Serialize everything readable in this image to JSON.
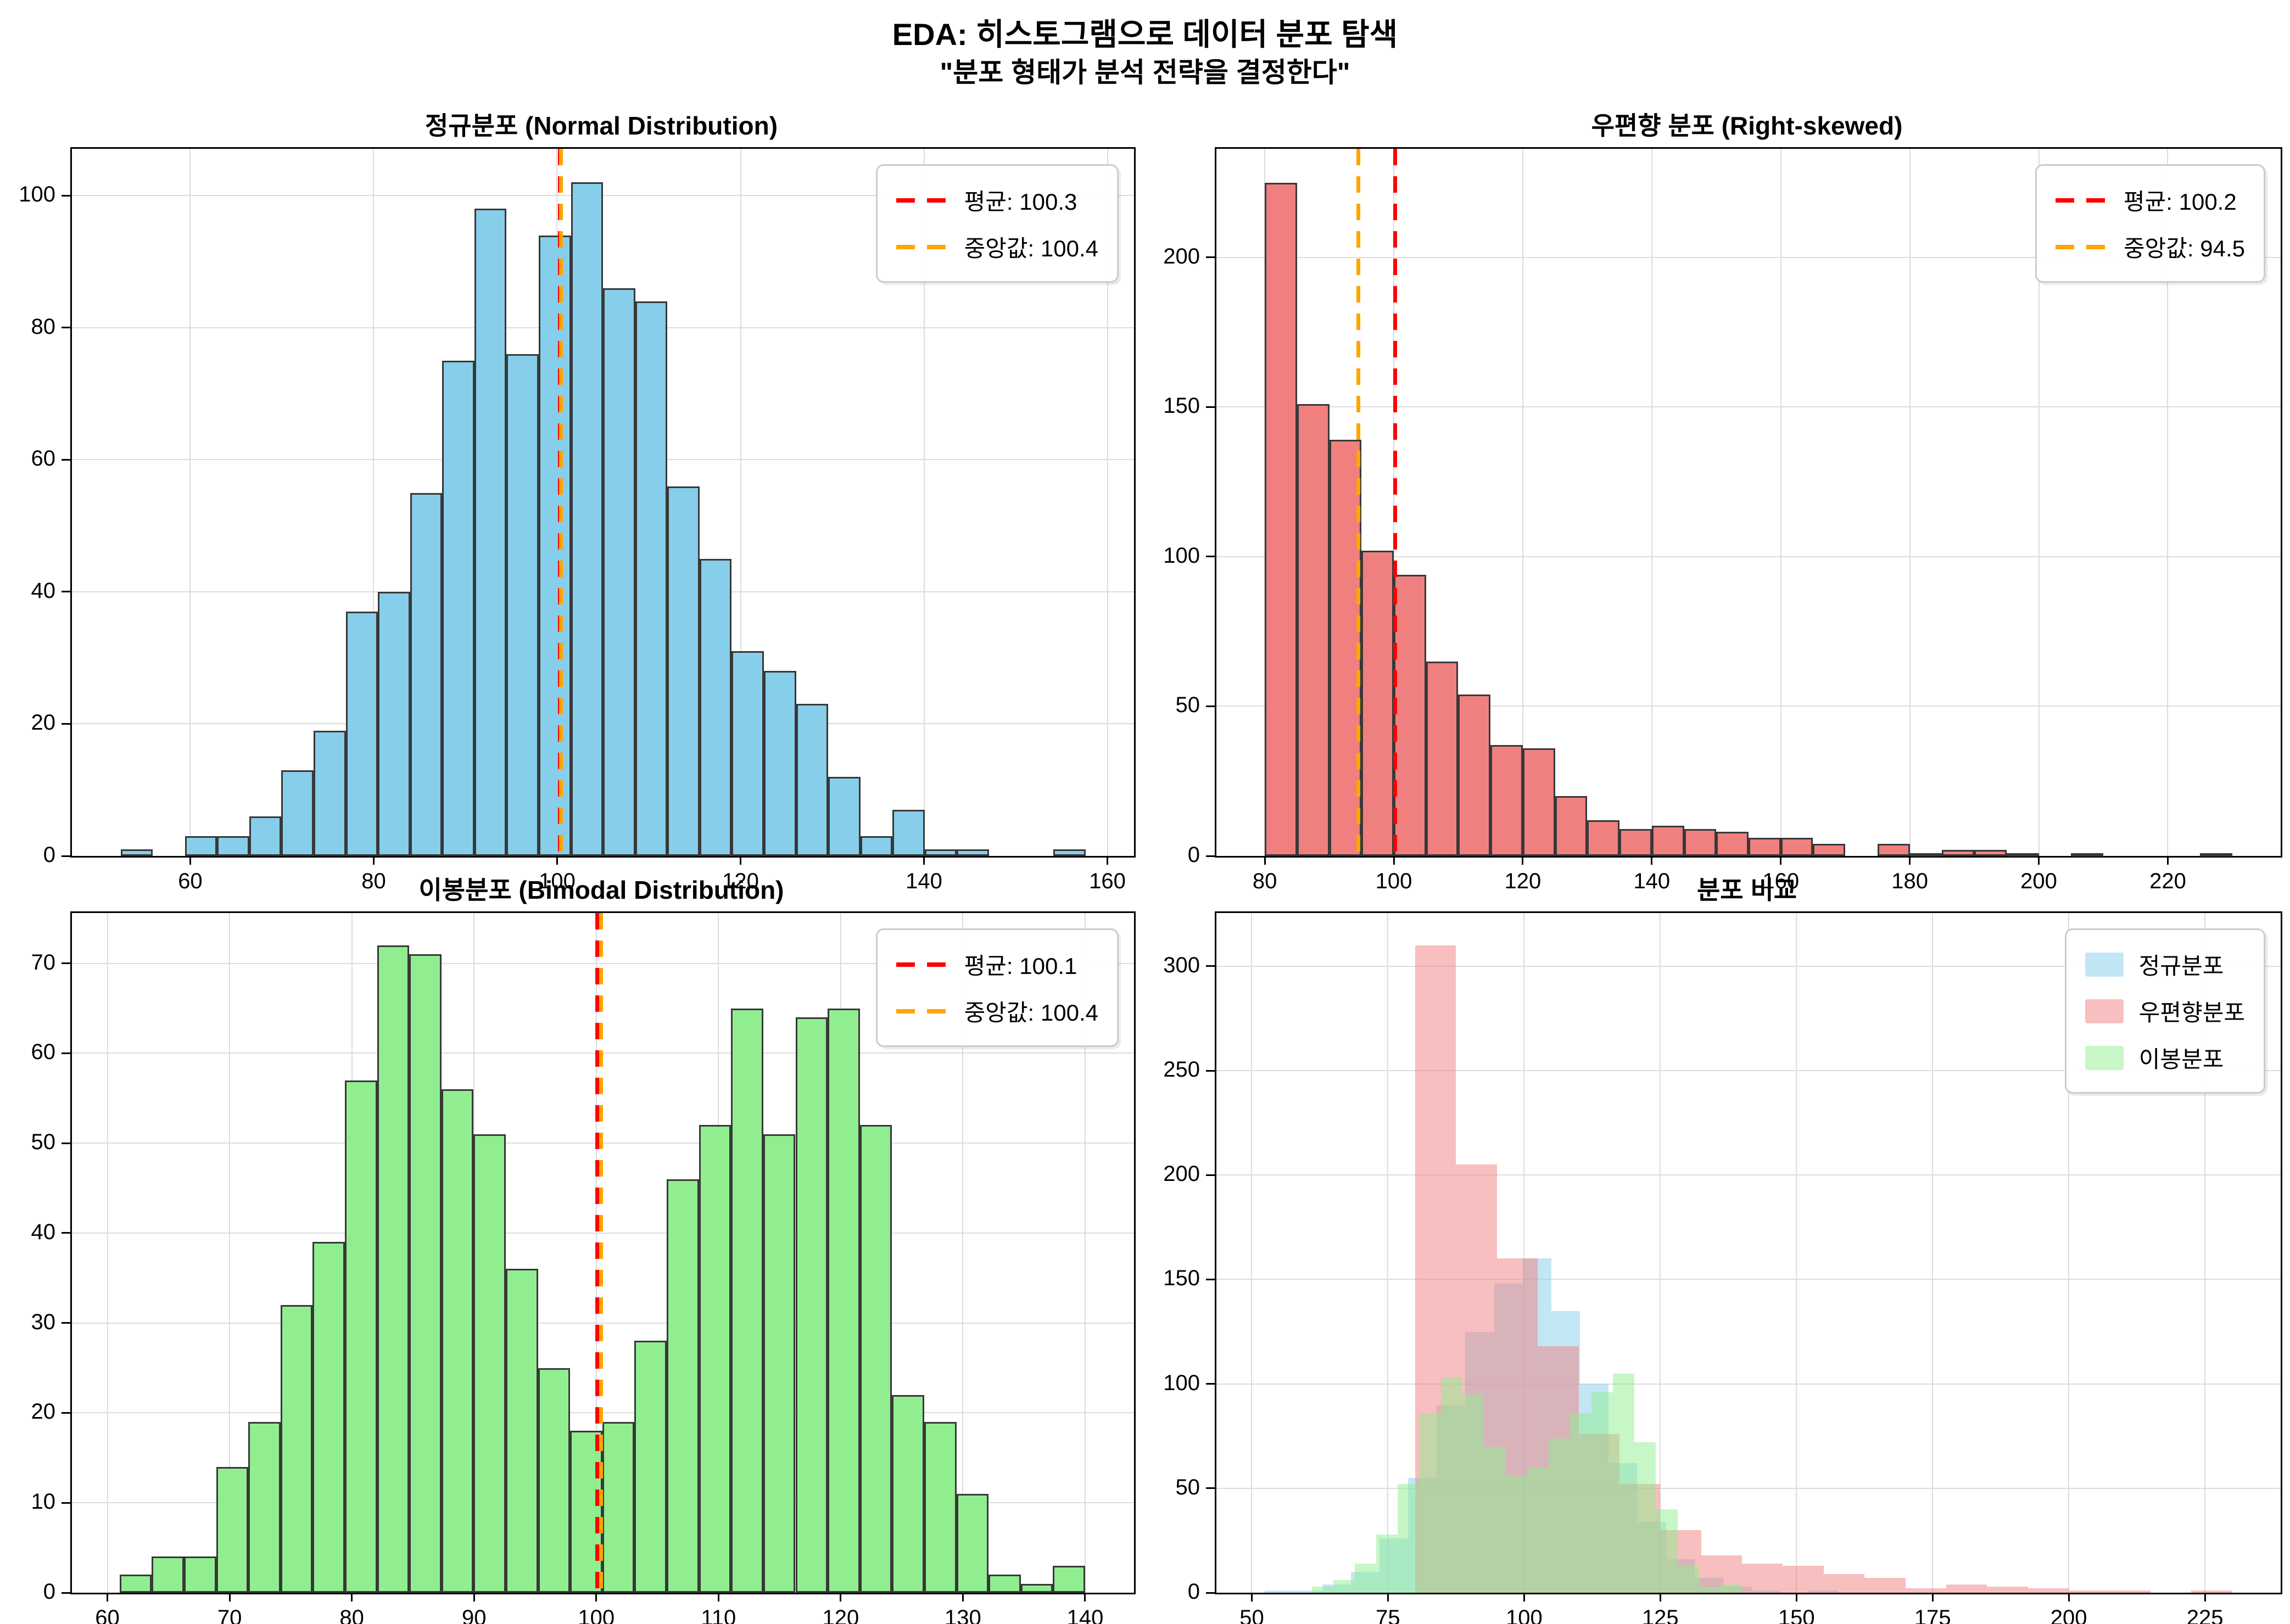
{
  "figure": {
    "suptitle_line1": "EDA: 히스토그램으로 데이터 분포 탐색",
    "suptitle_line2": "\"분포 형태가 분석 전략을 결정한다\"",
    "background": "#ffffff",
    "grid_color": "#dcdcdc",
    "spine_color": "#000000",
    "bar_edge_color": "#383838",
    "mean_line_color": "#ff0000",
    "median_line_color": "#ffa500"
  },
  "chart_data": [
    {
      "id": "normal-distribution",
      "type": "bar",
      "title": "정규분포 (Normal Distribution)",
      "bar_color": "#87CEEB",
      "bin_start": 52.4,
      "bin_width": 3.507,
      "values": [
        1,
        0,
        3,
        3,
        6,
        13,
        19,
        37,
        40,
        55,
        75,
        98,
        76,
        94,
        102,
        86,
        84,
        56,
        45,
        31,
        28,
        23,
        12,
        3,
        7,
        1,
        1,
        0,
        0,
        1
      ],
      "mean": 100.3,
      "median": 100.4,
      "legend_entries": [
        {
          "label": "평균: 100.3",
          "color": "#ff0000"
        },
        {
          "label": "중앙값: 100.4",
          "color": "#ffa500"
        }
      ],
      "xlim": [
        47.1,
        162.9
      ],
      "ylim": [
        0,
        107.1
      ],
      "xticks": [
        60,
        80,
        100,
        120,
        140,
        160
      ],
      "yticks": [
        0,
        20,
        40,
        60,
        80,
        100
      ],
      "grid": true,
      "legend_position": "top-right"
    },
    {
      "id": "right-skewed",
      "type": "bar",
      "title": "우편향 분포 (Right-skewed)",
      "bar_color": "#F08080",
      "bin_start": 80,
      "bin_width": 5,
      "values": [
        225,
        151,
        139,
        102,
        94,
        65,
        54,
        37,
        36,
        20,
        12,
        9,
        10,
        9,
        8,
        6,
        6,
        4,
        0,
        4,
        1,
        2,
        2,
        1,
        0,
        1,
        0,
        0,
        0,
        1
      ],
      "mean": 100.2,
      "median": 94.5,
      "legend_entries": [
        {
          "label": "평균: 100.2",
          "color": "#ff0000"
        },
        {
          "label": "중앙값: 94.5",
          "color": "#ffa500"
        }
      ],
      "xlim": [
        72.5,
        237.5
      ],
      "ylim": [
        0,
        236.3
      ],
      "xticks": [
        80,
        100,
        120,
        140,
        160,
        180,
        200,
        220
      ],
      "yticks": [
        0,
        50,
        100,
        150,
        200
      ],
      "grid": true,
      "legend_position": "top-right"
    },
    {
      "id": "bimodal-distribution",
      "type": "bar",
      "title": "이봉분포 (Bimodal Distribution)",
      "bar_color": "#90EE90",
      "bin_start": 61,
      "bin_width": 2.6333,
      "values": [
        2,
        4,
        4,
        14,
        19,
        32,
        39,
        57,
        72,
        71,
        56,
        51,
        36,
        25,
        18,
        19,
        28,
        46,
        52,
        65,
        51,
        64,
        65,
        52,
        22,
        19,
        11,
        2,
        1,
        3
      ],
      "mean": 100.1,
      "median": 100.4,
      "legend_entries": [
        {
          "label": "평균: 100.1",
          "color": "#ff0000"
        },
        {
          "label": "중앙값: 100.4",
          "color": "#ffa500"
        }
      ],
      "xlim": [
        57.1,
        144.0
      ],
      "ylim": [
        0,
        75.6
      ],
      "xticks": [
        60,
        70,
        80,
        90,
        100,
        110,
        120,
        130,
        140
      ],
      "yticks": [
        0,
        10,
        20,
        30,
        40,
        50,
        60,
        70
      ],
      "grid": true,
      "legend_position": "top-right"
    },
    {
      "id": "distribution-comparison",
      "type": "bar",
      "title": "분포 비교",
      "alpha": 0.5,
      "series": [
        {
          "name": "정규분포",
          "color": "#87CEEB",
          "bin_start": 52.4,
          "bin_width": 5.26,
          "values": [
            1,
            1,
            4,
            10,
            26,
            55,
            90,
            125,
            148,
            160,
            135,
            100,
            62,
            34,
            16,
            7,
            3,
            1,
            0,
            1
          ]
        },
        {
          "name": "우편향분포",
          "color": "#F08080",
          "bin_start": 80,
          "bin_width": 7.5,
          "values": [
            310,
            205,
            160,
            118,
            76,
            52,
            30,
            18,
            14,
            13,
            9,
            7,
            2,
            4,
            3,
            2,
            1,
            1,
            0,
            1
          ]
        },
        {
          "name": "이봉분포",
          "color": "#90EE90",
          "bin_start": 61,
          "bin_width": 3.95,
          "values": [
            3,
            6,
            14,
            28,
            52,
            86,
            103,
            95,
            70,
            56,
            60,
            74,
            86,
            96,
            105,
            72,
            40,
            13,
            3,
            4
          ]
        }
      ],
      "xlim": [
        43.5,
        238.9
      ],
      "ylim": [
        0,
        325.5
      ],
      "xticks": [
        50,
        75,
        100,
        125,
        150,
        175,
        200,
        225
      ],
      "yticks": [
        0,
        50,
        100,
        150,
        200,
        250,
        300
      ],
      "grid": true,
      "legend_position": "top-right"
    }
  ]
}
